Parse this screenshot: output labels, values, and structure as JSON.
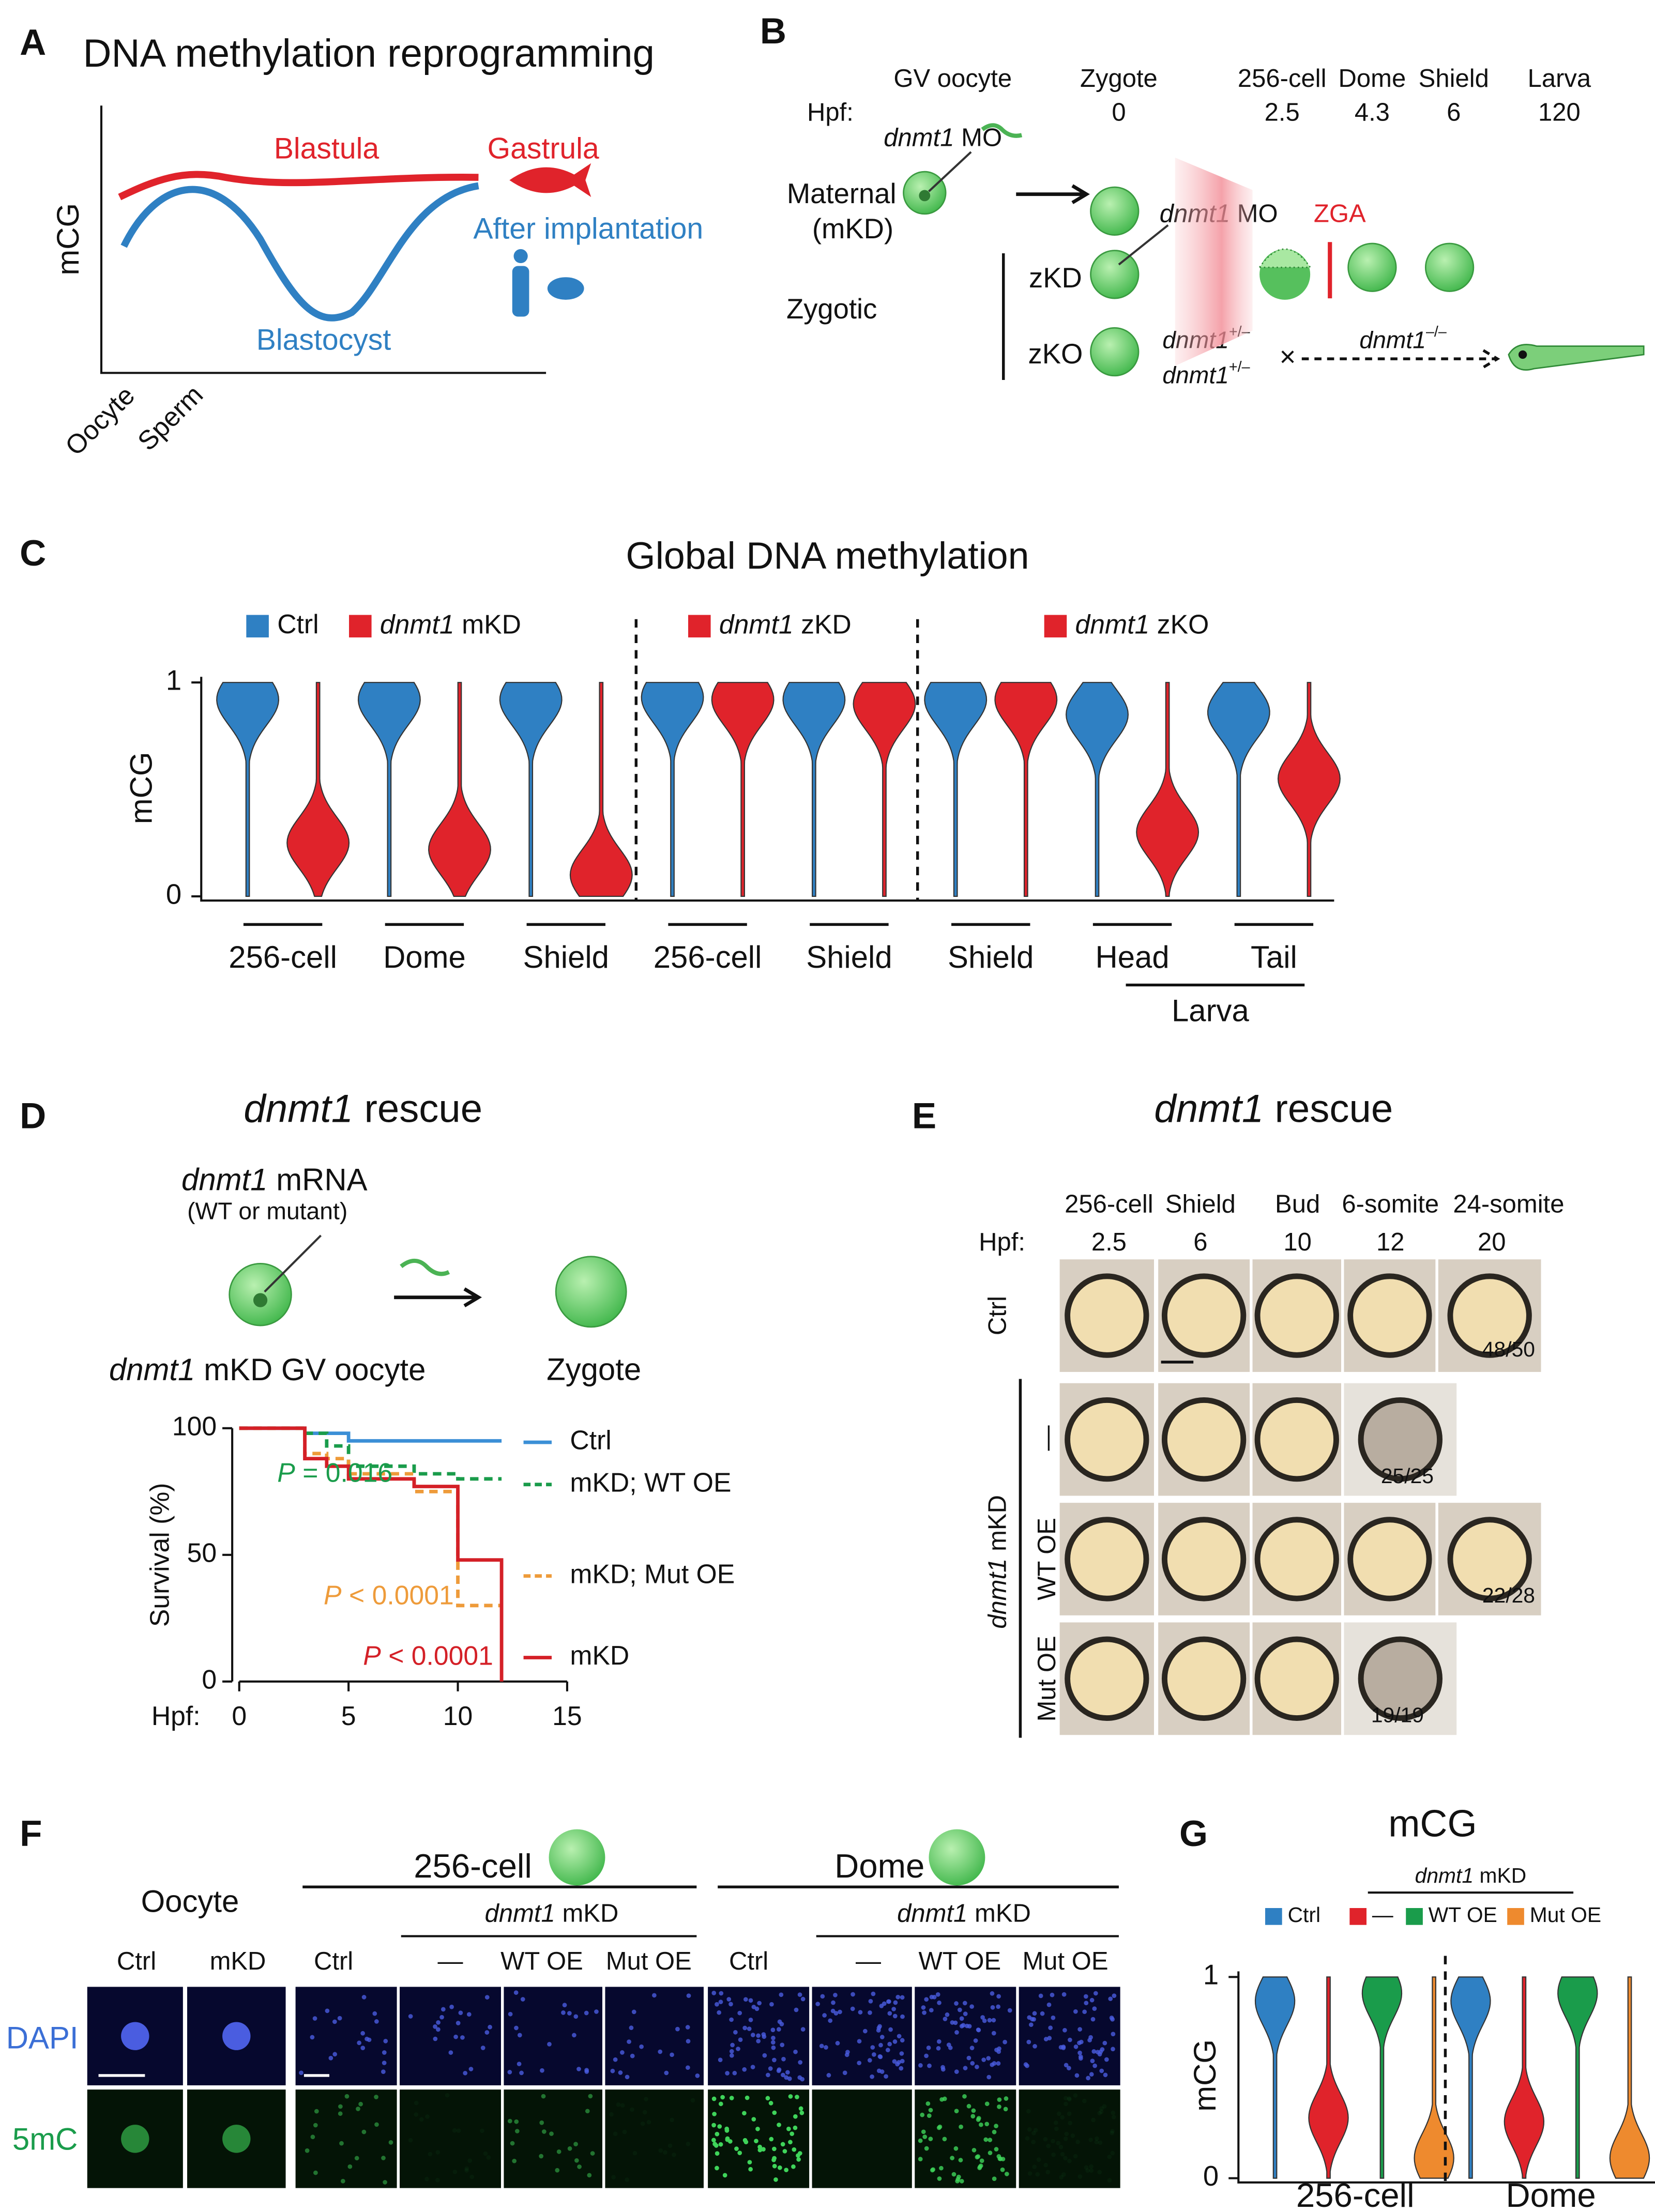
{
  "letters": [
    "A",
    "B",
    "C",
    "D",
    "E",
    "F",
    "G"
  ],
  "panel_a": {
    "title": "DNA methylation reprogramming",
    "y_label": "mCG",
    "blastula": "Blastula",
    "gastrula": "Gastrula",
    "after": "After implantation",
    "blastocyst": "Blastocyst",
    "oocyte": "Oocyte",
    "sperm": "Sperm"
  },
  "panel_b": {
    "stages": [
      "GV oocyte",
      "Zygote",
      "256-cell",
      "Dome",
      "Shield",
      "Larva"
    ],
    "hpf_label": "Hpf:",
    "hpf": [
      0,
      2.5,
      4.3,
      6,
      120
    ],
    "mo1": {
      "gene": "dnmt1",
      "text": "MO"
    },
    "maternal": "Maternal",
    "maternal_sub": "(mKD)",
    "zygotic": "Zygotic",
    "zkd": "zKD",
    "zko": "zKO",
    "mo2": {
      "gene": "dnmt1",
      "text": "MO"
    },
    "zga": "ZGA",
    "het1": {
      "gene": "dnmt1",
      "sup": "+/–"
    },
    "het2": {
      "gene": "dnmt1",
      "sup": "+/–"
    },
    "cross": "×",
    "ko": {
      "gene": "dnmt1",
      "sup": "–/–"
    }
  },
  "chart_data": [
    {
      "type": "violin",
      "title": "Global DNA methylation",
      "y_label": "mCG",
      "ylim": [
        0,
        1
      ],
      "yticks": [
        0,
        1
      ],
      "categories": [
        "256-cell",
        "Dome",
        "Shield",
        "256-cell",
        "Shield",
        "Shield",
        "Head",
        "Tail"
      ],
      "group_label": "Larva",
      "legend": [
        {
          "gene": "dnmt1",
          "text": "mKD"
        },
        {
          "gene": "dnmt1",
          "text": "zKD"
        },
        {
          "gene": "dnmt1",
          "text": "zKO"
        }
      ],
      "series": [
        {
          "name": "Ctrl",
          "color": "#2f80c3",
          "values": [
            0.92,
            0.92,
            0.92,
            0.93,
            0.92,
            0.92,
            0.85,
            0.86
          ]
        },
        {
          "color": "#e0232b",
          "values": [
            0.25,
            0.22,
            0.1,
            0.92,
            0.9,
            0.92,
            0.3,
            0.55
          ]
        }
      ]
    },
    {
      "type": "line",
      "step": true,
      "title": {
        "gene": "dnmt1",
        "text": "rescue"
      },
      "x_label": "Hpf:",
      "y_label": "Survival (%)",
      "xlim": [
        0,
        15
      ],
      "xticks": [
        0,
        5,
        10,
        15
      ],
      "ylim": [
        0,
        100
      ],
      "yticks": [
        0,
        50,
        100
      ],
      "x": [
        0,
        3,
        4,
        5,
        8,
        10,
        12
      ],
      "series": [
        {
          "name": "Ctrl",
          "color": "#3b8fd6",
          "dashed": false,
          "values": [
            100,
            98,
            98,
            95,
            95,
            95,
            95
          ]
        },
        {
          "name": "mKD; WT OE",
          "color": "#1a9c4b",
          "dashed": true,
          "values": [
            100,
            98,
            93,
            85,
            82,
            80,
            80
          ]
        },
        {
          "name": "mKD; Mut OE",
          "color": "#ee9b3a",
          "dashed": true,
          "values": [
            100,
            90,
            88,
            82,
            75,
            30,
            30
          ]
        },
        {
          "name": "mKD",
          "color": "#d42027",
          "dashed": false,
          "values": [
            100,
            88,
            85,
            80,
            77,
            48,
            0
          ]
        }
      ],
      "annotations": [
        {
          "p": "P",
          "text": "= 0.016",
          "color": "#1a9c4b"
        },
        {
          "p": "P",
          "text": "< 0.0001",
          "color": "#ee9b3a"
        },
        {
          "p": "P",
          "text": "< 0.0001",
          "color": "#d42027"
        }
      ]
    },
    {
      "type": "violin",
      "title": "mCG",
      "y_label": "mCG",
      "ylim": [
        0,
        1
      ],
      "yticks": [
        0,
        1
      ],
      "categories": [
        "256-cell",
        "Dome"
      ],
      "legend_group": {
        "gene": "dnmt1",
        "text": "mKD"
      },
      "series": [
        {
          "name": "Ctrl",
          "color": "#2f80c3",
          "values": [
            0.88,
            0.88
          ]
        },
        {
          "name": "—",
          "color": "#e0232b",
          "values": [
            0.3,
            0.28
          ]
        },
        {
          "name": "WT OE",
          "color": "#1a9c4b",
          "values": [
            0.92,
            0.92
          ]
        },
        {
          "name": "Mut OE",
          "color": "#ee8a2e",
          "values": [
            0.1,
            0.1
          ]
        }
      ]
    }
  ],
  "panel_d": {
    "mrna": {
      "gene": "dnmt1",
      "text": "mRNA"
    },
    "mrna_sub": "(WT or mutant)",
    "oocyte": {
      "gene": "dnmt1",
      "text": "mKD GV oocyte"
    },
    "zygote": "Zygote"
  },
  "panel_e": {
    "title": {
      "gene": "dnmt1",
      "text": "rescue"
    },
    "stages": [
      "256-cell",
      "Shield",
      "Bud",
      "6-somite",
      "24-somite"
    ],
    "hpf_label": "Hpf:",
    "hpf": [
      2.5,
      6,
      10,
      12,
      20
    ],
    "rows": [
      "Ctrl",
      "—",
      "WT OE",
      "Mut OE"
    ],
    "group": {
      "gene": "dnmt1",
      "text": "mKD"
    },
    "counts": [
      "48/50",
      "25/25",
      "22/28",
      "19/19"
    ]
  },
  "panel_f": {
    "oocyte": "Oocyte",
    "oocyte_cols": [
      "Ctrl",
      "mKD"
    ],
    "stages": [
      "256-cell",
      "Dome"
    ],
    "groups": [
      {
        "gene": "dnmt1",
        "text": "mKD"
      },
      {
        "gene": "dnmt1",
        "text": "mKD"
      }
    ],
    "stage_cols": [
      [
        "Ctrl",
        "—",
        "WT OE",
        "Mut OE"
      ],
      [
        "Ctrl",
        "—",
        "WT OE",
        "Mut OE"
      ]
    ],
    "rows": [
      "DAPI",
      "5mC"
    ]
  }
}
